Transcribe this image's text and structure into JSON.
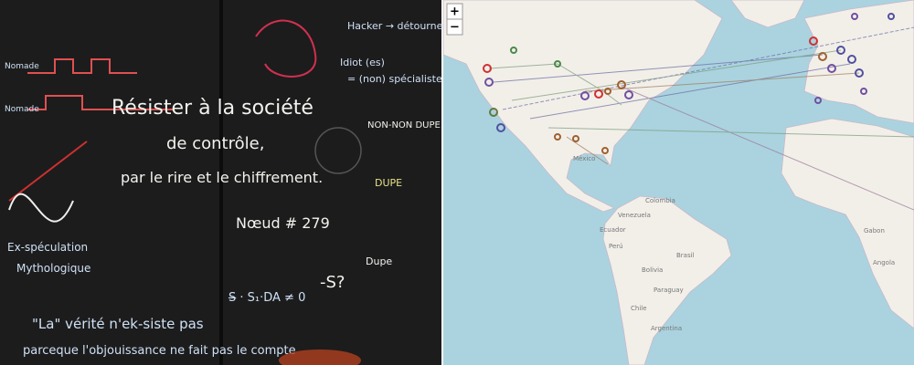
{
  "chalkboard": {
    "lines": [
      "Résister à la société",
      "de contrôle,",
      "par le rire et le chiffrement.",
      "Nœud # 279",
      "Hacker → détourne",
      "Idiot (es)",
      "= (non) spécialiste",
      "NON-NON DUPE",
      "DUPE",
      "Dupe",
      "-S?",
      "S̶ · S₁·DA ≠ 0",
      "Nomade",
      "Nomade",
      "Ex-spéculation",
      "Mythologique",
      "\"La\" vérité n'ek-siste pas",
      "parceque l'objouissance ne fait pas le compte"
    ]
  },
  "map": {
    "labels": [
      "México",
      "Venezuela",
      "Colombia",
      "Ecuador",
      "Perú",
      "Brasil",
      "Bolivia",
      "Paraguay",
      "Chile",
      "Argentina",
      "Gabon",
      "Angola"
    ],
    "zoom": [
      "+",
      "−"
    ]
  }
}
